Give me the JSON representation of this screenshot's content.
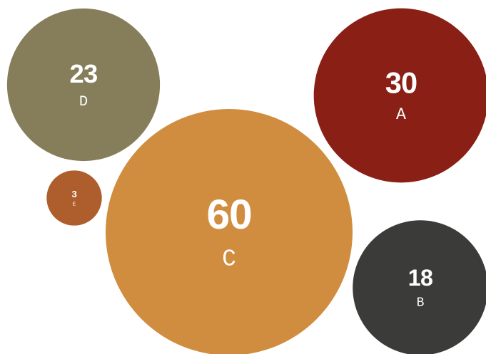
{
  "chart_data": {
    "type": "bubble",
    "title": "",
    "legend": "none",
    "grid": false,
    "series": [
      {
        "label": "A",
        "value": 30,
        "color": "#8a2015"
      },
      {
        "label": "B",
        "value": 18,
        "color": "#3b3b3a"
      },
      {
        "label": "C",
        "value": 60,
        "color": "#d18d3f"
      },
      {
        "label": "D",
        "value": 23,
        "color": "#867e5a"
      },
      {
        "label": "E",
        "value": 3,
        "color": "#ad5e2c"
      }
    ]
  }
}
